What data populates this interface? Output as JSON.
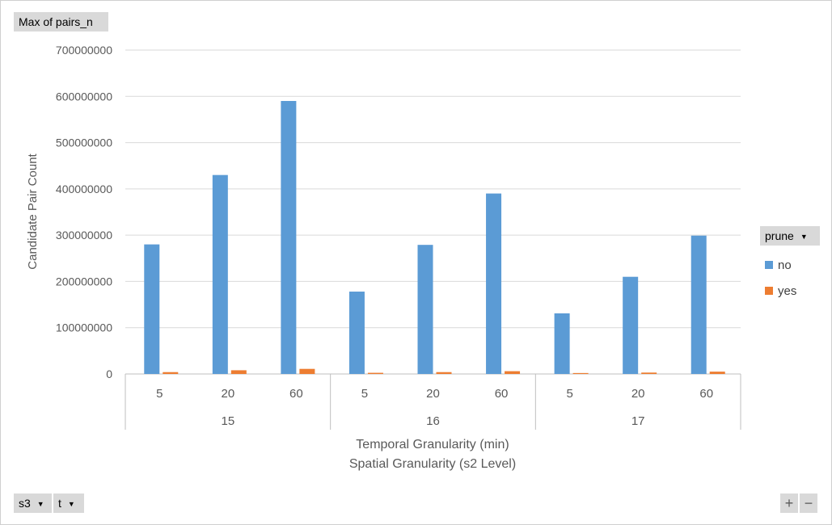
{
  "pivot_buttons": {
    "value_field": "Max of pairs_n",
    "legend_field": "prune",
    "axis_fields": [
      "s3",
      "t"
    ],
    "zoom_in": "+",
    "zoom_out": "−"
  },
  "colors": {
    "no": "#5b9bd5",
    "yes": "#ed7d31",
    "gridline": "#d9d9d9",
    "axis_text": "#595959"
  },
  "chart_data": {
    "type": "bar",
    "ylabel": "Candidate Pair Count",
    "xlabel_lines": [
      "Temporal Granularity (min)",
      "Spatial Granularity (s2 Level)"
    ],
    "ylim": [
      0,
      700000000
    ],
    "yticks": [
      "0",
      "100000000",
      "200000000",
      "300000000",
      "400000000",
      "500000000",
      "600000000",
      "700000000"
    ],
    "ytick_values": [
      0,
      100000000,
      200000000,
      300000000,
      400000000,
      500000000,
      600000000,
      700000000
    ],
    "groups": [
      {
        "label": "15",
        "categories": [
          "5",
          "20",
          "60"
        ]
      },
      {
        "label": "16",
        "categories": [
          "5",
          "20",
          "60"
        ]
      },
      {
        "label": "17",
        "categories": [
          "5",
          "20",
          "60"
        ]
      }
    ],
    "series": [
      {
        "name": "no",
        "values": [
          280000000,
          430000000,
          590000000,
          178000000,
          279000000,
          390000000,
          131000000,
          210000000,
          299000000
        ]
      },
      {
        "name": "yes",
        "values": [
          4000000,
          8000000,
          11000000,
          2500000,
          4000000,
          6000000,
          2000000,
          3000000,
          5000000
        ]
      }
    ],
    "grid": true,
    "legend_position": "right"
  }
}
